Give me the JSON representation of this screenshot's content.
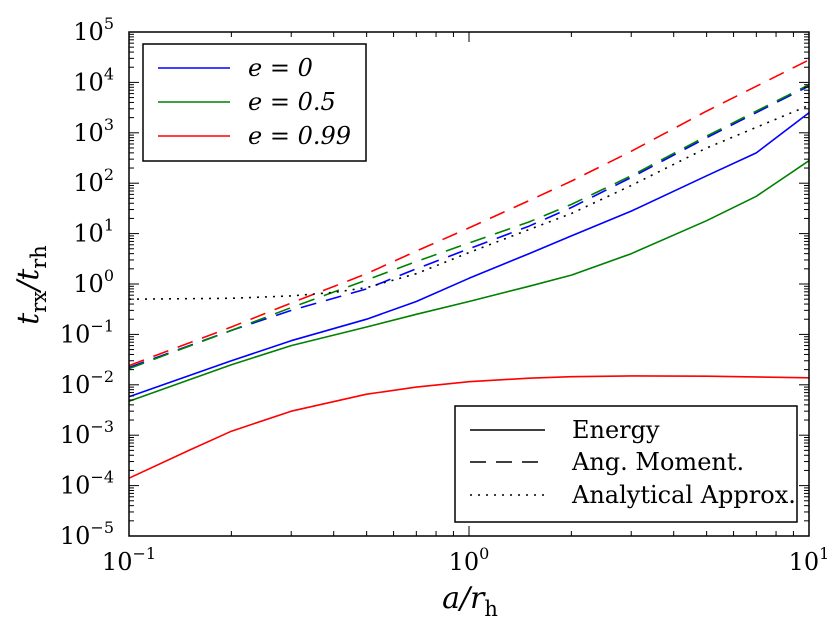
{
  "chart_data": {
    "type": "line",
    "xscale": "log",
    "yscale": "log",
    "xlim": [
      0.1,
      10
    ],
    "ylim": [
      1e-05,
      100000
    ],
    "x_ticks": [
      {
        "base": "10",
        "exp": "−1"
      },
      {
        "base": "10",
        "exp": "0"
      },
      {
        "base": "10",
        "exp": "1"
      }
    ],
    "y_ticks": [
      {
        "base": "10",
        "exp": "−5"
      },
      {
        "base": "10",
        "exp": "−4"
      },
      {
        "base": "10",
        "exp": "−3"
      },
      {
        "base": "10",
        "exp": "−2"
      },
      {
        "base": "10",
        "exp": "−1"
      },
      {
        "base": "10",
        "exp": "0"
      },
      {
        "base": "10",
        "exp": "1"
      },
      {
        "base": "10",
        "exp": "2"
      },
      {
        "base": "10",
        "exp": "3"
      },
      {
        "base": "10",
        "exp": "4"
      },
      {
        "base": "10",
        "exp": "5"
      }
    ],
    "xlabel": {
      "main": "a/r",
      "sub": "h"
    },
    "ylabel": {
      "main1": "t",
      "sub1": "rx",
      "mid": "/t",
      "sub2": "rh"
    },
    "legend_color": {
      "placement": "top-left",
      "entries": [
        {
          "label": "e = 0",
          "color": "#0000ff"
        },
        {
          "label": "e = 0.5",
          "color": "#008000"
        },
        {
          "label": "e = 0.99",
          "color": "#ff0000"
        }
      ]
    },
    "legend_style": {
      "placement": "bottom-right",
      "entries": [
        {
          "label": "Energy",
          "style": "solid"
        },
        {
          "label": "Ang. Moment.",
          "style": "dashed"
        },
        {
          "label": "Analytical Approx.",
          "style": "dotted"
        }
      ]
    },
    "series": [
      {
        "e": "0",
        "kind": "Energy",
        "color": "#0000ff",
        "style": "solid",
        "x": [
          0.1,
          0.2,
          0.3,
          0.5,
          0.7,
          1.0,
          1.5,
          2.0,
          3.0,
          5.0,
          7.0,
          10.0
        ],
        "y": [
          0.0058,
          0.03,
          0.075,
          0.2,
          0.45,
          1.3,
          4.0,
          9.0,
          28.0,
          140.0,
          400.0,
          2500.0
        ]
      },
      {
        "e": "0.5",
        "kind": "Energy",
        "color": "#008000",
        "style": "solid",
        "x": [
          0.1,
          0.2,
          0.3,
          0.5,
          0.7,
          1.0,
          1.5,
          2.0,
          3.0,
          5.0,
          7.0,
          10.0
        ],
        "y": [
          0.0047,
          0.025,
          0.06,
          0.14,
          0.25,
          0.45,
          0.9,
          1.5,
          4.0,
          18.0,
          55.0,
          280.0
        ]
      },
      {
        "e": "0.99",
        "kind": "Energy",
        "color": "#ff0000",
        "style": "solid",
        "x": [
          0.1,
          0.15,
          0.2,
          0.3,
          0.5,
          0.7,
          1.0,
          1.5,
          2.0,
          3.0,
          5.0,
          10.0
        ],
        "y": [
          0.00014,
          0.0005,
          0.0012,
          0.003,
          0.0065,
          0.009,
          0.0115,
          0.0135,
          0.0145,
          0.015,
          0.0148,
          0.0138
        ]
      },
      {
        "e": "0",
        "kind": "Ang. Moment.",
        "color": "#0000ff",
        "style": "dashed",
        "x": [
          0.1,
          0.2,
          0.3,
          0.5,
          0.7,
          1.0,
          1.5,
          2.0,
          3.0,
          5.0,
          10.0
        ],
        "y": [
          0.022,
          0.12,
          0.3,
          0.8,
          2.0,
          5.0,
          14.0,
          33.0,
          130.0,
          800.0,
          8500.0
        ]
      },
      {
        "e": "0.5",
        "kind": "Ang. Moment.",
        "color": "#008000",
        "style": "dashed",
        "x": [
          0.1,
          0.2,
          0.3,
          0.5,
          0.7,
          1.0,
          1.5,
          2.0,
          3.0,
          5.0,
          10.0
        ],
        "y": [
          0.021,
          0.12,
          0.34,
          1.2,
          2.8,
          6.5,
          17.0,
          38.0,
          140.0,
          860.0,
          9000.0
        ]
      },
      {
        "e": "0.99",
        "kind": "Ang. Moment.",
        "color": "#ff0000",
        "style": "dashed",
        "x": [
          0.1,
          0.2,
          0.3,
          0.5,
          0.7,
          1.0,
          1.5,
          2.0,
          3.0,
          5.0,
          10.0
        ],
        "y": [
          0.024,
          0.14,
          0.42,
          1.6,
          4.5,
          13.0,
          45.0,
          110.0,
          430.0,
          2700.0,
          28000.0
        ]
      },
      {
        "e": "",
        "kind": "Analytical Approx.",
        "color": "#000000",
        "style": "dotted",
        "x": [
          0.1,
          0.2,
          0.3,
          0.4,
          0.5,
          0.7,
          1.0,
          1.5,
          2.0,
          3.0,
          5.0,
          10.0
        ],
        "y": [
          0.5,
          0.52,
          0.58,
          0.68,
          0.85,
          1.6,
          4.2,
          12.0,
          25.0,
          90.0,
          500.0,
          3500.0
        ]
      }
    ]
  }
}
